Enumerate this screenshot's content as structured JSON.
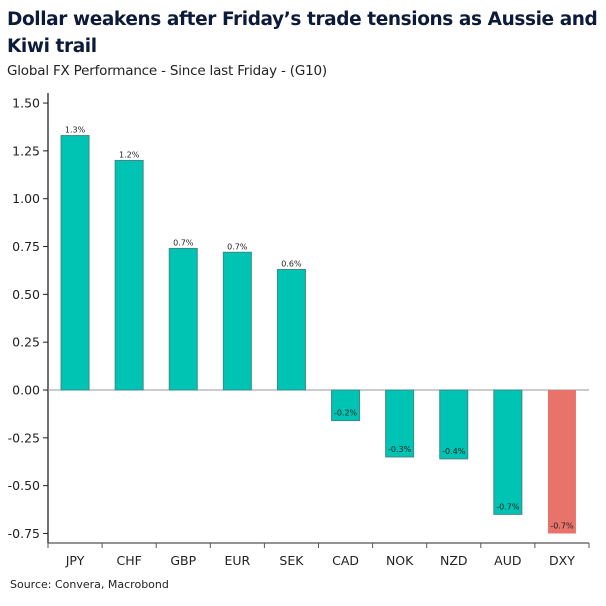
{
  "chart_data": {
    "type": "bar",
    "title": "Dollar weakens after Friday’s trade tensions as Aussie and Kiwi trail",
    "subtitle": "Global FX Performance - Since last Friday - (G10)",
    "source": "Source: Convera, Macrobond",
    "categories": [
      "JPY",
      "CHF",
      "GBP",
      "EUR",
      "SEK",
      "CAD",
      "NOK",
      "NZD",
      "AUD",
      "DXY"
    ],
    "values": [
      1.33,
      1.2,
      0.74,
      0.72,
      0.63,
      -0.16,
      -0.35,
      -0.36,
      -0.65,
      -0.75
    ],
    "data_labels": [
      "1.3%",
      "1.2%",
      "0.7%",
      "0.7%",
      "0.6%",
      "-0.2%",
      "-0.3%",
      "-0.4%",
      "-0.7%",
      "-0.7%"
    ],
    "colors": [
      "#00c4b3",
      "#00c4b3",
      "#00c4b3",
      "#00c4b3",
      "#00c4b3",
      "#00c4b3",
      "#00c4b3",
      "#00c4b3",
      "#00c4b3",
      "#e8736a"
    ],
    "ylim": [
      -0.75,
      1.5
    ],
    "yticks": [
      "1.50",
      "1.25",
      "1.00",
      "0.75",
      "0.50",
      "0.25",
      "0.00",
      "-0.25",
      "-0.50",
      "-0.75"
    ],
    "xlabel": "",
    "ylabel": "",
    "grid": false,
    "legend": "none"
  }
}
